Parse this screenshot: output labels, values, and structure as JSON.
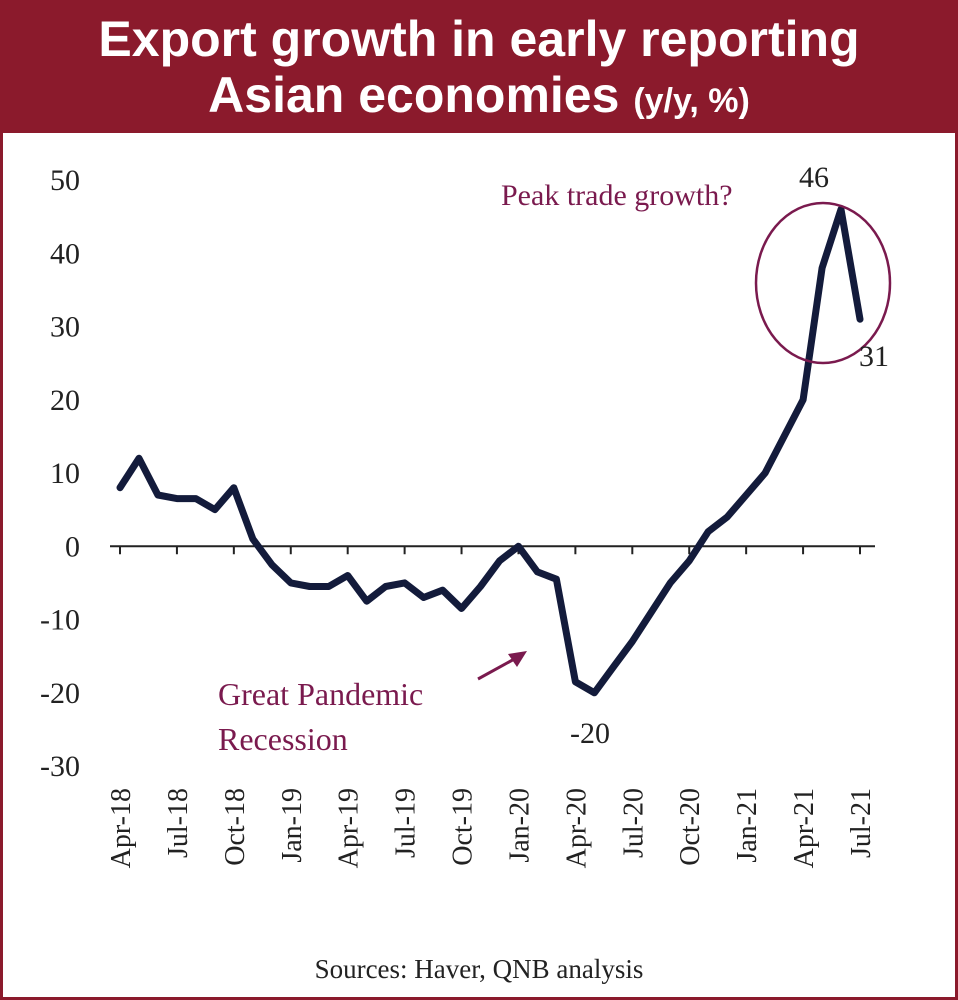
{
  "header": {
    "title_line1": "Export growth in early reporting",
    "title_line2": "Asian economies",
    "title_unit": "(y/y, %)"
  },
  "colors": {
    "header_bg": "#8b1a2c",
    "line": "#131b3b",
    "annotation": "#7a1a4e"
  },
  "chart_data": {
    "type": "line",
    "title": "Export growth in early reporting Asian economies (y/y, %)",
    "ylim": [
      -30,
      50
    ],
    "y_ticks": [
      50,
      40,
      30,
      20,
      10,
      0,
      -10,
      -20,
      -30
    ],
    "x_tick_labels": [
      "Apr-18",
      "Jul-18",
      "Oct-18",
      "Jan-19",
      "Apr-19",
      "Jul-19",
      "Oct-19",
      "Jan-20",
      "Apr-20",
      "Jul-20",
      "Oct-20",
      "Jan-21",
      "Apr-21",
      "Jul-21"
    ],
    "x": [
      "Apr-18",
      "May-18",
      "Jun-18",
      "Jul-18",
      "Aug-18",
      "Sep-18",
      "Oct-18",
      "Nov-18",
      "Dec-18",
      "Jan-19",
      "Feb-19",
      "Mar-19",
      "Apr-19",
      "May-19",
      "Jun-19",
      "Jul-19",
      "Aug-19",
      "Sep-19",
      "Oct-19",
      "Nov-19",
      "Dec-19",
      "Jan-20",
      "Feb-20",
      "Mar-20",
      "Apr-20",
      "May-20",
      "Jun-20",
      "Jul-20",
      "Aug-20",
      "Sep-20",
      "Oct-20",
      "Nov-20",
      "Dec-20",
      "Jan-21",
      "Feb-21",
      "Mar-21",
      "Apr-21",
      "May-21",
      "Jun-21",
      "Jul-21"
    ],
    "series": [
      {
        "values": [
          8,
          12,
          7,
          6.5,
          6.5,
          5,
          8,
          1,
          -2.5,
          -5,
          -5.5,
          -5.5,
          -4,
          -7.5,
          -5.5,
          -5,
          -7,
          -6,
          -8.5,
          -5.5,
          -2,
          0,
          -3.5,
          -4.5,
          -18.5,
          -20,
          -16.5,
          -13,
          -9,
          -5,
          -2,
          2,
          4,
          7,
          10,
          15,
          20,
          38,
          46,
          31
        ]
      }
    ],
    "annotations": [
      {
        "text": "Peak trade growth?"
      },
      {
        "text": "Great Pandemic"
      },
      {
        "text": "Recession"
      },
      {
        "text": "46"
      },
      {
        "text": "31"
      },
      {
        "text": "-20"
      }
    ]
  },
  "footer": {
    "source": "Sources: Haver, QNB analysis"
  }
}
